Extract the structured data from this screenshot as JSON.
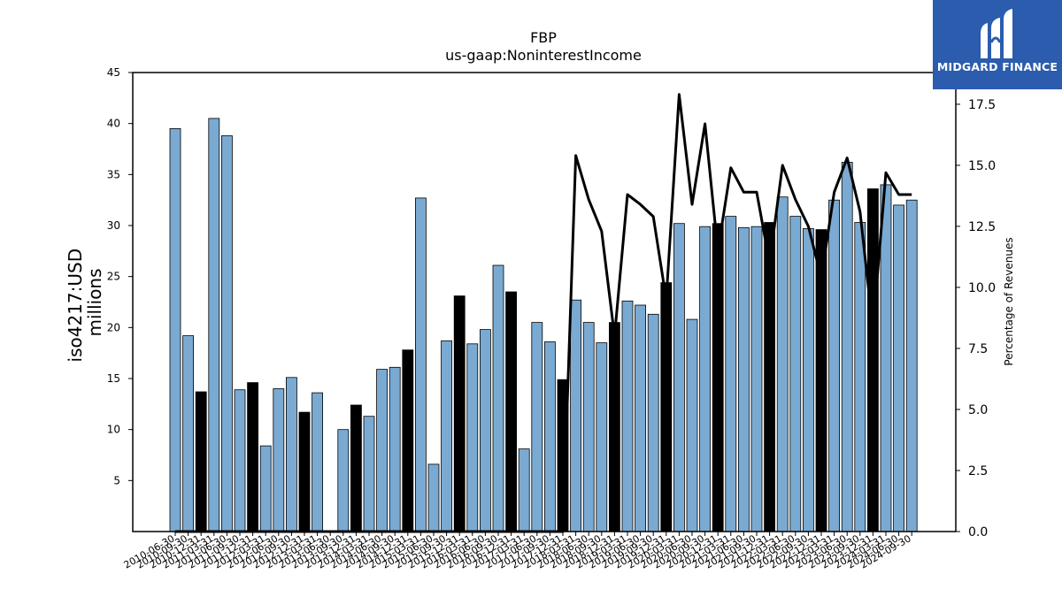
{
  "brand": {
    "name": "MIDGARD FINANCE",
    "color": "#2b5cad",
    "icon": "midgard-logo-icon"
  },
  "chart_data": {
    "type": "bar",
    "title": "FBP",
    "subtitle": "us-gaap:NoninterestIncome",
    "ylabel": "iso4217:USD\nmillions",
    "y2label": "Percentage of Revenues",
    "xlabel": "",
    "ylim": [
      0,
      45
    ],
    "y2lim": [
      0,
      18.8
    ],
    "yticks": [
      5,
      10,
      15,
      20,
      25,
      30,
      35,
      40,
      45
    ],
    "y2ticks": [
      "0.0",
      "2.5",
      "5.0",
      "7.5",
      "10.0",
      "12.5",
      "15.0",
      "17.5"
    ],
    "grid": false,
    "bar_colors": {
      "default": "#7aaad2",
      "q4": "#000000"
    },
    "line_color": "#000000",
    "categories": [
      "2010-06-30",
      "2010-09-30",
      "2010-12-31",
      "2011-03-31",
      "2011-06-30",
      "2011-09-30",
      "2011-12-31",
      "2012-03-31",
      "2012-06-30",
      "2012-09-30",
      "2012-12-31",
      "2013-03-31",
      "2013-06-30",
      "2013-09-30",
      "2013-12-31",
      "2014-03-31",
      "2014-06-30",
      "2014-09-30",
      "2014-12-31",
      "2015-03-31",
      "2015-06-30",
      "2015-09-30",
      "2015-12-31",
      "2016-03-31",
      "2016-06-30",
      "2016-09-30",
      "2016-12-31",
      "2017-03-31",
      "2017-06-30",
      "2017-09-30",
      "2017-12-31",
      "2018-03-31",
      "2018-06-30",
      "2018-09-30",
      "2018-12-31",
      "2019-03-31",
      "2019-06-30",
      "2019-09-30",
      "2019-12-31",
      "2020-03-31",
      "2020-06-30",
      "2020-09-30",
      "2020-12-31",
      "2021-03-31",
      "2021-06-30",
      "2021-09-30",
      "2021-12-31",
      "2022-03-31",
      "2022-06-30",
      "2022-09-30",
      "2022-12-31",
      "2023-03-31",
      "2023-06-30",
      "2023-09-30",
      "2023-12-31",
      "2024-03-31",
      "2024-06-30",
      "2024-09-30"
    ],
    "series": [
      {
        "type": "bar",
        "axis": "left",
        "values": [
          39.5,
          19.2,
          13.7,
          40.5,
          38.8,
          13.9,
          14.6,
          8.4,
          14.0,
          15.1,
          11.7,
          13.6,
          0,
          10.0,
          12.4,
          11.3,
          15.9,
          16.1,
          17.8,
          32.7,
          6.6,
          18.7,
          23.1,
          18.4,
          19.8,
          26.1,
          23.5,
          8.1,
          20.5,
          18.6,
          14.9,
          22.7,
          20.5,
          18.5,
          20.5,
          22.6,
          22.2,
          21.3,
          24.4,
          30.2,
          20.8,
          29.9,
          30.2,
          30.9,
          29.8,
          29.9,
          30.3,
          32.8,
          30.9,
          29.7,
          29.6,
          32.5,
          36.2,
          30.3,
          33.6,
          34.0,
          32.0,
          32.5
        ]
      },
      {
        "type": "line",
        "axis": "right",
        "values": [
          0,
          0,
          0,
          0,
          0,
          0,
          0,
          0,
          0,
          0,
          0,
          0,
          0,
          0,
          0,
          0,
          0,
          0,
          0,
          0,
          0,
          0,
          0,
          0,
          0,
          0,
          0,
          0,
          0,
          0,
          0,
          15.4,
          13.6,
          12.3,
          8.0,
          13.8,
          13.4,
          12.9,
          9.5,
          17.9,
          13.4,
          16.7,
          11.5,
          14.9,
          13.9,
          13.9,
          11.0,
          15.0,
          13.6,
          12.5,
          10.4,
          13.9,
          15.3,
          13.1,
          8.3,
          14.7,
          13.8,
          13.8
        ]
      }
    ]
  }
}
